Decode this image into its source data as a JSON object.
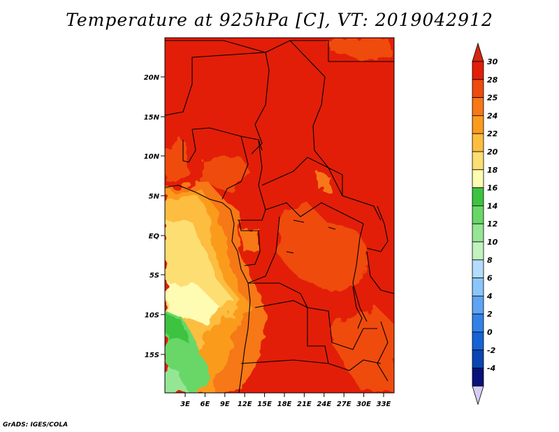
{
  "title": "Temperature at 925hPa [C], VT: 2019042912",
  "credit": "GrADS: IGES/COLA",
  "map": {
    "lat_labels": [
      "20N",
      "15N",
      "10N",
      "5N",
      "EQ",
      "5S",
      "10S",
      "15S"
    ],
    "lon_labels": [
      "3E",
      "6E",
      "9E",
      "12E",
      "15E",
      "18E",
      "21E",
      "24E",
      "27E",
      "30E",
      "33E"
    ]
  },
  "colorbar": {
    "labels": [
      "30",
      "28",
      "25",
      "24",
      "22",
      "20",
      "18",
      "16",
      "14",
      "12",
      "10",
      "8",
      "6",
      "4",
      "2",
      "0",
      "-2",
      "-4"
    ],
    "colors": [
      "#e21e08",
      "#ef4b0e",
      "#f77815",
      "#fb9b1c",
      "#fdbd3f",
      "#fdde72",
      "#fefbb2",
      "#3dc33f",
      "#68d768",
      "#95e694",
      "#c2f2bf",
      "#b4dcfd",
      "#8ac6fb",
      "#5ea3f4",
      "#3381e8",
      "#1663d6",
      "#0a45b3",
      "#08127a"
    ],
    "top_color": "#d4270f",
    "bottom_color": "#d6cdf5"
  }
}
